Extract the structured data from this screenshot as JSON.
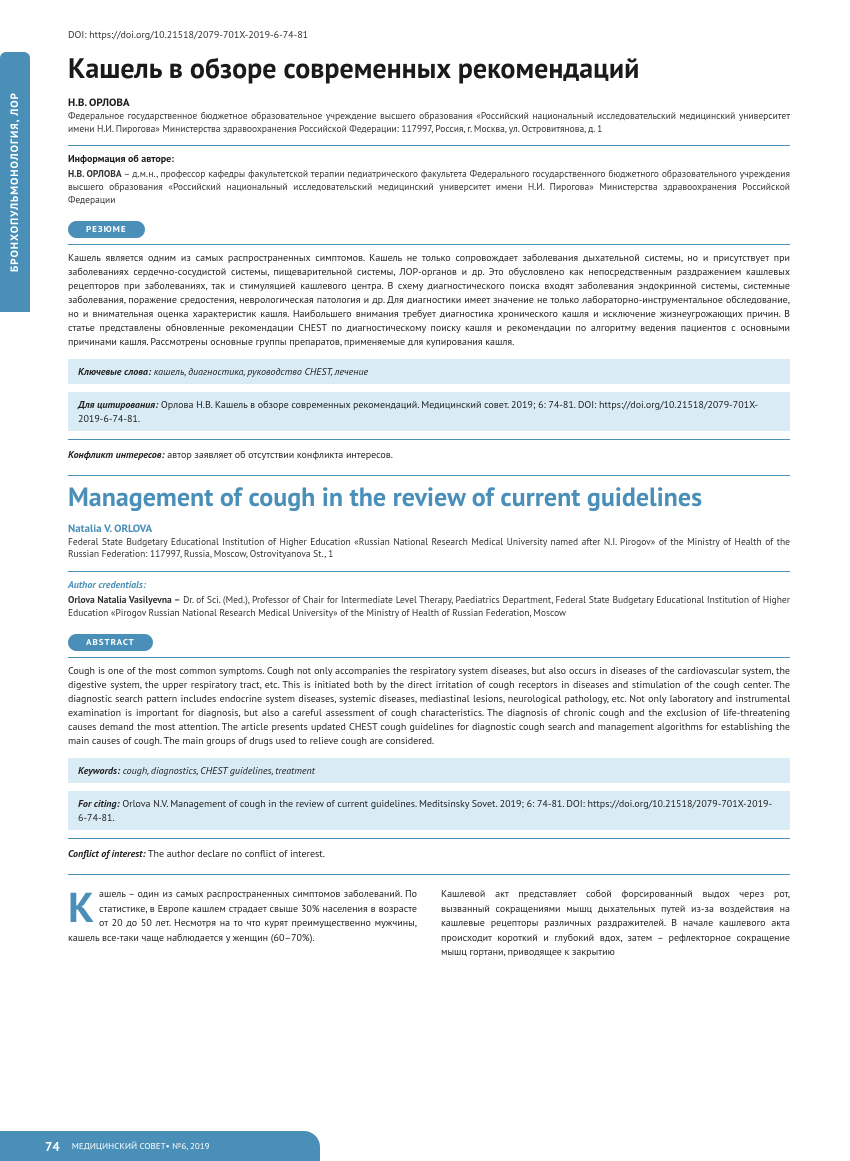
{
  "colors": {
    "accent": "#4a8fb8",
    "highlight_bg": "#d9ecf5",
    "page_bg": "#ffffff",
    "text": "#222222"
  },
  "sidebar_tab": "БРОНХОПУЛЬМОНОЛОГИЯ, ЛОР",
  "doi": "DOI: https://doi.org/10.21518/2079-701X-2019-6-74-81",
  "ru": {
    "title": "Кашель в обзоре современных рекомендаций",
    "author": "Н.В. ОРЛОВА",
    "affiliation": "Федеральное государственное бюджетное образовательное учреждение высшего образования «Российский национальный исследовательский медицинский университет имени Н.И. Пирогова» Министерства здравоохранения Российской Федерации: 117997, Россия, г. Москва, ул. Островитянова, д. 1",
    "author_info_label": "Информация об авторе:",
    "author_info": "Орлова Наталья Васильевна – д.м.н., профессор кафедры факультетской терапии педиатрического факультета Федерального государственного бюджетного образовательного учреждения высшего образования «Российский национальный исследовательский медицинский университет имени Н.И. Пирогова» Министерства здравоохранения Российской Федерации",
    "abstract_pill": "РЕЗЮМЕ",
    "abstract": "Кашель является одним из самых распространенных симптомов. Кашель не только сопровождает заболевания дыхательной системы, но и присутствует при заболеваниях сердечно-сосудистой системы, пищеварительной системы, ЛОР-органов и др. Это обусловлено как непосредственным раздражением кашлевых рецепторов при заболеваниях, так и стимуляцией кашлевого центра. В схему диагностического поиска входят заболевания эндокринной системы, системные заболевания, поражение средостения, неврологическая патология и др. Для диагностики имеет значение не только лабораторно-инструментальное обследование, но и внимательная оценка характеристик кашля. Наибольшего внимания требует диагностика хронического кашля и исключение жизнеугрожающих причин. В статье представлены обновленные рекомендации CHEST по диагностическому поиску кашля и рекомендации по алгоритму ведения пациентов с основными причинами кашля. Рассмотрены основные группы препаратов, применяемые для купирования кашля.",
    "keywords_label": "Ключевые слова:",
    "keywords": " кашель, диагностика, руководство CHEST, лечение",
    "citation_label": "Для цитирования:",
    "citation": " Орлова Н.В. Кашель в обзоре современных рекомендаций. Медицинский совет. 2019; 6: 74-81. DOI: https://doi.org/10.21518/2079-701X-2019-6-74-81.",
    "coi_label": "Конфликт интересов:",
    "coi": " автор заявляет об отсутствии конфликта интересов."
  },
  "en": {
    "title": "Management of cough in the review of current guidelines",
    "author": "Natalia V. ORLOVA",
    "affiliation": "Federal State Budgetary Educational Institution of Higher Education «Russian National Research Medical University named after N.I. Pirogov» of the Ministry of Health of the Russian Federation: 117997, Russia, Moscow, Ostrovityanova St., 1",
    "author_info_label": "Author credentials:",
    "author_info": "Orlova Natalia Vasilyevna – Dr. of Sci. (Med.), Professor of Chair for Intermediate Level Therapy, Paediatrics Department, Federal State Budgetary Educational Institution of Higher Education «Pirogov Russian National Research Medical University» of the Ministry of Health of Russian Federation, Moscow",
    "abstract_pill": "ABSTRACT",
    "abstract": "Cough is one of the most common symptoms. Cough not only accompanies the respiratory system diseases, but also occurs in diseases of the cardiovascular system, the digestive system, the upper respiratory tract, etc. This is initiated both by the direct irritation of cough receptors in diseases and stimulation of the cough center. The diagnostic search pattern includes endocrine system diseases, systemic diseases, mediastinal lesions, neurological pathology, etc. Not only laboratory and instrumental examination is important for diagnosis, but also a careful assessment of cough characteristics. The diagnosis of chronic cough and the exclusion of life-threatening causes demand the most attention. The article presents updated CHEST cough guidelines for diagnostic cough search and management algorithms for establishing the main causes of cough. The main groups of drugs used to relieve cough are considered.",
    "keywords_label": "Keywords:",
    "keywords": " cough, diagnostics, CHEST guidelines, treatment",
    "citation_label": "For citing:",
    "citation": " Orlova N.V. Management of cough in the review of current guidelines. Meditsinsky Sovet. 2019; 6: 74-81. DOI: https://doi.org/10.21518/2079-701X-2019-6-74-81.",
    "coi_label": "Conflict of interest:",
    "coi": " The author declare no conflict of interest."
  },
  "body": {
    "dropcap": "К",
    "col1": "ашель – один из самых распространенных симптомов заболеваний. По статистике, в Европе кашлем страдает свыше 30% населения в возрасте от 20 до 50 лет. Несмотря на то что курят преимущественно мужчины, кашель все-таки чаще наблюдается у женщин (60–70%).",
    "col2": "Кашлевой акт представляет собой форсированный выдох через рот, вызванный сокращениями мышц дыхательных путей из-за воздействия на кашлевые рецепторы различных раздражителей. В начале кашлевого акта происходит короткий и глубокий вдох, затем – рефлекторное сокращение мышц гортани, приводящее к закрытию"
  },
  "footer": {
    "page": "74",
    "journal": "МЕДИЦИНСКИЙ СОВЕТ",
    "issue": " • №6, 2019"
  }
}
